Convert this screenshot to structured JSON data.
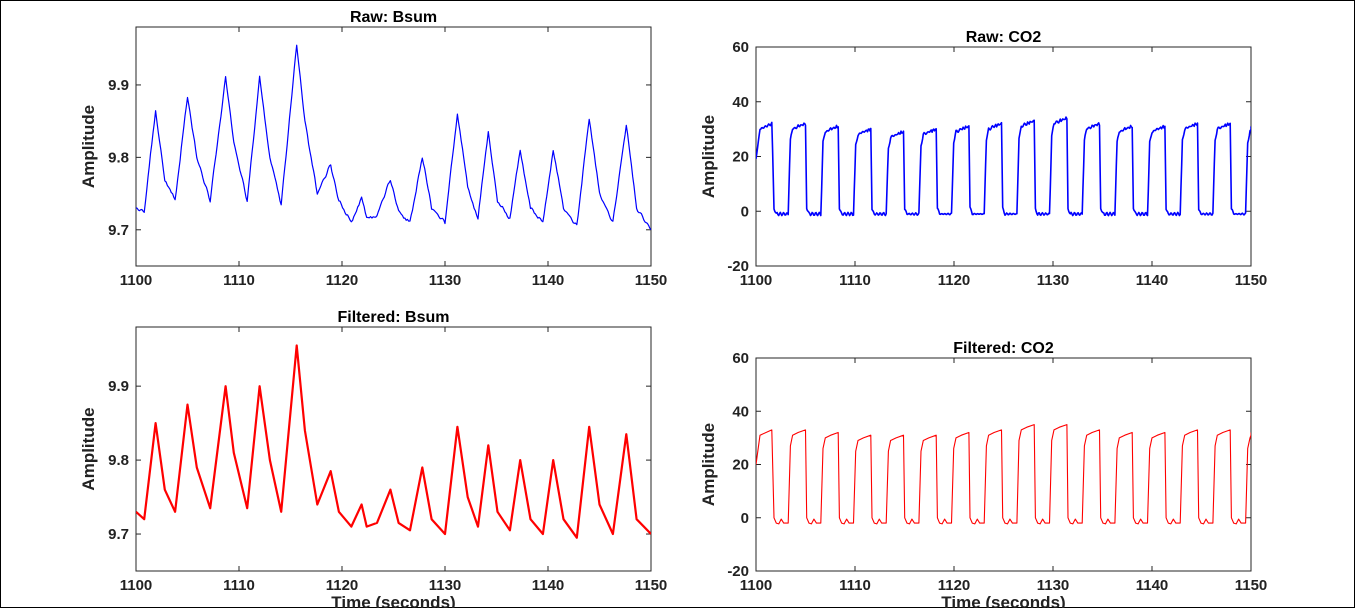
{
  "chart_data": [
    {
      "type": "line",
      "title": "Raw: Bsum",
      "xlabel": "",
      "ylabel": "Amplitude",
      "xlim": [
        1100,
        1150
      ],
      "ylim": [
        9.65,
        9.98
      ],
      "xticks": [
        1100,
        1110,
        1120,
        1130,
        1140,
        1150
      ],
      "yticks": [
        9.7,
        9.8,
        9.9
      ],
      "series": [
        {
          "color": "#0000ff",
          "x": [
            1100,
            1100.8,
            1101.9,
            1102.8,
            1103.8,
            1105,
            1105.9,
            1107.2,
            1108.7,
            1109.5,
            1110.8,
            1112,
            1113,
            1114.1,
            1115.6,
            1116.4,
            1117.6,
            1118.9,
            1119.7,
            1120.9,
            1121.9,
            1122.4,
            1123.4,
            1124.7,
            1125.5,
            1126.6,
            1127.8,
            1128.7,
            1130,
            1131.2,
            1132.2,
            1133.2,
            1134.2,
            1135.1,
            1136.3,
            1137.3,
            1138.3,
            1139.5,
            1140.5,
            1141.5,
            1142.8,
            1144,
            1145,
            1146.3,
            1147.6,
            1148.6,
            1150
          ],
          "y": [
            9.73,
            9.725,
            9.865,
            9.77,
            9.74,
            9.885,
            9.8,
            9.74,
            9.91,
            9.82,
            9.74,
            9.91,
            9.8,
            9.735,
            9.955,
            9.85,
            9.75,
            9.79,
            9.74,
            9.71,
            9.745,
            9.715,
            9.72,
            9.77,
            9.725,
            9.71,
            9.8,
            9.73,
            9.71,
            9.86,
            9.76,
            9.715,
            9.835,
            9.74,
            9.715,
            9.81,
            9.73,
            9.71,
            9.81,
            9.73,
            9.705,
            9.855,
            9.75,
            9.71,
            9.845,
            9.73,
            9.7
          ]
        }
      ]
    },
    {
      "type": "line",
      "title": "Raw: CO2",
      "xlabel": "",
      "ylabel": "Amplitude",
      "xlim": [
        1100,
        1150
      ],
      "ylim": [
        -20,
        60
      ],
      "xticks": [
        1100,
        1110,
        1120,
        1130,
        1140,
        1150
      ],
      "yticks": [
        -20,
        0,
        20,
        40,
        60
      ],
      "series": [
        {
          "color": "#0000ff",
          "period": 3.3,
          "start": 1101.7,
          "high": [
            32,
            32,
            31,
            30,
            29,
            30,
            31,
            32,
            33,
            34,
            32,
            31,
            31,
            32,
            32,
            31
          ],
          "low": -1
        }
      ]
    },
    {
      "type": "line",
      "title": "Filtered: Bsum",
      "xlabel": "Time (seconds)",
      "ylabel": "Amplitude",
      "xlim": [
        1100,
        1150
      ],
      "ylim": [
        9.65,
        9.98
      ],
      "xticks": [
        1100,
        1110,
        1120,
        1130,
        1140,
        1150
      ],
      "yticks": [
        9.7,
        9.8,
        9.9
      ],
      "series": [
        {
          "color": "#ff0000",
          "x": [
            1100,
            1100.8,
            1101.9,
            1102.8,
            1103.8,
            1105,
            1105.9,
            1107.2,
            1108.7,
            1109.5,
            1110.8,
            1112,
            1113,
            1114.1,
            1115.6,
            1116.4,
            1117.6,
            1118.9,
            1119.7,
            1120.9,
            1121.9,
            1122.4,
            1123.4,
            1124.7,
            1125.5,
            1126.6,
            1127.8,
            1128.7,
            1130,
            1131.2,
            1132.2,
            1133.2,
            1134.2,
            1135.1,
            1136.3,
            1137.3,
            1138.3,
            1139.5,
            1140.5,
            1141.5,
            1142.8,
            1144,
            1145,
            1146.3,
            1147.6,
            1148.6,
            1150
          ],
          "y": [
            9.73,
            9.72,
            9.85,
            9.76,
            9.73,
            9.875,
            9.79,
            9.735,
            9.9,
            9.81,
            9.735,
            9.9,
            9.8,
            9.73,
            9.955,
            9.84,
            9.74,
            9.785,
            9.73,
            9.71,
            9.74,
            9.71,
            9.715,
            9.76,
            9.715,
            9.705,
            9.79,
            9.72,
            9.7,
            9.845,
            9.75,
            9.71,
            9.82,
            9.73,
            9.705,
            9.8,
            9.72,
            9.7,
            9.8,
            9.72,
            9.695,
            9.845,
            9.74,
            9.7,
            9.835,
            9.72,
            9.7
          ]
        }
      ]
    },
    {
      "type": "line",
      "title": "Filtered: CO2",
      "xlabel": "Time (seconds)",
      "ylabel": "Amplitude",
      "xlim": [
        1100,
        1150
      ],
      "ylim": [
        -20,
        60
      ],
      "xticks": [
        1100,
        1110,
        1120,
        1130,
        1140,
        1150
      ],
      "yticks": [
        -20,
        0,
        20,
        40,
        60
      ],
      "series": [
        {
          "color": "#ff0000",
          "period": 3.3,
          "start": 1101.7,
          "high": [
            33,
            33,
            32,
            31,
            31,
            31,
            32,
            33,
            35,
            35,
            33,
            32,
            32,
            33,
            33,
            32
          ],
          "low": -2
        }
      ]
    }
  ]
}
